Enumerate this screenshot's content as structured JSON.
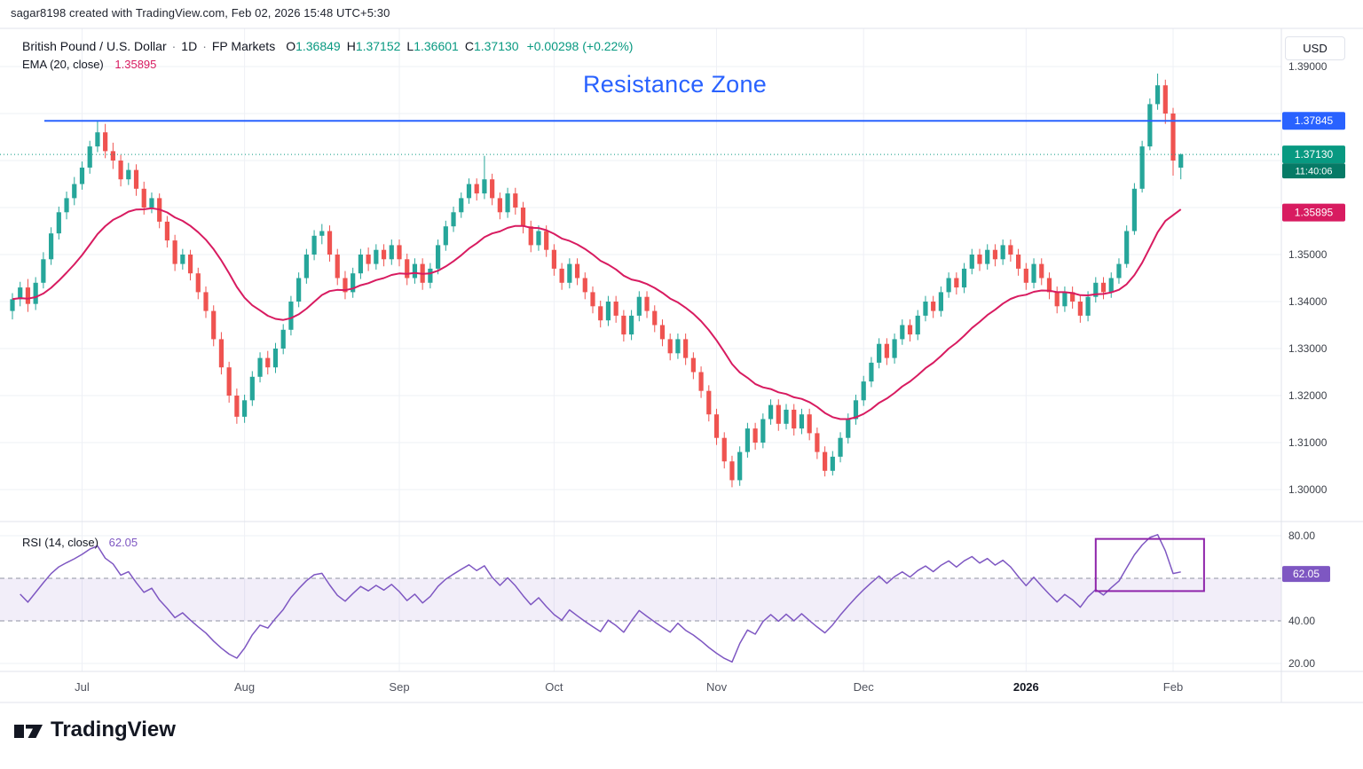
{
  "attribution": "sagar8198 created with TradingView.com, Feb 02, 2026 15:48 UTC+5:30",
  "header": {
    "symbol": "British Pound / U.S. Dollar",
    "sep": "·",
    "interval": "1D",
    "broker": "FP Markets",
    "ohlc": {
      "o_label": "O",
      "o": "1.36849",
      "h_label": "H",
      "h": "1.37152",
      "l_label": "L",
      "l": "1.36601",
      "c_label": "C",
      "c": "1.37130",
      "change": "+0.00298 (+0.22%)"
    },
    "indicator": {
      "name": "EMA (20, close)",
      "value": "1.35895"
    }
  },
  "annotations": {
    "resistance_text": "Resistance Zone"
  },
  "colors": {
    "up": "#26a69a",
    "down": "#ef5350",
    "up_text": "#089981",
    "ema": "#d81b60",
    "resistance": "#2962ff",
    "rsi": "#7e57c2",
    "countdown_bg": "#067a66",
    "grid": "#eef0f6",
    "frame": "#e0e3eb",
    "axis_text": "#3c4049",
    "time_text": "#50535e"
  },
  "price_axis": {
    "currency_button": "USD",
    "labels": [
      {
        "text": "1.39000",
        "value": 1.39
      },
      {
        "text": "1.35000",
        "value": 1.35
      },
      {
        "text": "1.34000",
        "value": 1.34
      },
      {
        "text": "1.33000",
        "value": 1.33
      },
      {
        "text": "1.32000",
        "value": 1.32
      },
      {
        "text": "1.31000",
        "value": 1.31
      },
      {
        "text": "1.30000",
        "value": 1.3
      }
    ],
    "resistance_label": {
      "text": "1.37845",
      "value": 1.37845
    },
    "last_price_label": {
      "text": "1.37130",
      "value": 1.3713,
      "countdown": "11:40:06"
    },
    "ema_label": {
      "text": "1.35895",
      "value": 1.35895
    }
  },
  "rsi_pane": {
    "name": "RSI (14, close)",
    "value": "62.05",
    "line_color": "#7e57c2",
    "band_fill": "rgba(126,87,194,0.10)",
    "band_upper": 60,
    "band_lower": 40,
    "axis_labels": [
      {
        "text": "80.00",
        "value": 80
      },
      {
        "text": "40.00",
        "value": 40
      },
      {
        "text": "20.00",
        "value": 20
      }
    ],
    "value_label": {
      "text": "62.05",
      "value": 62.05
    },
    "highlight_box": {
      "from_index": 140,
      "to_index": 154,
      "top_rsi": 78.5,
      "bottom_rsi": 54,
      "color": "#8e24aa"
    }
  },
  "time_axis": {
    "labels": [
      {
        "label": "Jul",
        "index": 9
      },
      {
        "label": "Aug",
        "index": 30
      },
      {
        "label": "Sep",
        "index": 50
      },
      {
        "label": "Oct",
        "index": 70
      },
      {
        "label": "Nov",
        "index": 91
      },
      {
        "label": "Dec",
        "index": 110
      },
      {
        "label": "2026",
        "index": 131,
        "bold": true
      },
      {
        "label": "Feb",
        "index": 150
      }
    ]
  },
  "footer": {
    "brand": "TradingView"
  },
  "chart_data": {
    "type": "candlestick",
    "symbol": "GBP/USD",
    "interval": "1D",
    "title": "British Pound / U.S. Dollar 1D with EMA(20) and RSI(14)",
    "y_axis_range": [
      1.295,
      1.395
    ],
    "rsi_axis_range": [
      20,
      80
    ],
    "ema_period": 20,
    "rsi_period": 14,
    "resistance_level": 1.37845,
    "last_price": 1.3713,
    "last_values": {
      "ema": 1.35895,
      "rsi": 62.05
    },
    "candles": [
      [
        1.338,
        1.3418,
        1.3362,
        1.3405
      ],
      [
        1.3405,
        1.3442,
        1.339,
        1.343
      ],
      [
        1.343,
        1.3448,
        1.3378,
        1.3395
      ],
      [
        1.3395,
        1.3452,
        1.3382,
        1.344
      ],
      [
        1.344,
        1.3505,
        1.3428,
        1.349
      ],
      [
        1.349,
        1.3558,
        1.3478,
        1.3545
      ],
      [
        1.3545,
        1.3602,
        1.3532,
        1.359
      ],
      [
        1.359,
        1.3634,
        1.3575,
        1.362
      ],
      [
        1.362,
        1.3665,
        1.3605,
        1.365
      ],
      [
        1.365,
        1.3698,
        1.3638,
        1.3685
      ],
      [
        1.3685,
        1.3742,
        1.3672,
        1.373
      ],
      [
        1.373,
        1.3785,
        1.3718,
        1.376
      ],
      [
        1.376,
        1.3778,
        1.3705,
        1.372
      ],
      [
        1.372,
        1.3738,
        1.3682,
        1.37
      ],
      [
        1.37,
        1.3712,
        1.3645,
        1.366
      ],
      [
        1.366,
        1.3695,
        1.3648,
        1.368
      ],
      [
        1.368,
        1.3692,
        1.3625,
        1.364
      ],
      [
        1.364,
        1.3655,
        1.3585,
        1.36
      ],
      [
        1.36,
        1.3632,
        1.3588,
        1.362
      ],
      [
        1.362,
        1.363,
        1.3556,
        1.357
      ],
      [
        1.357,
        1.3582,
        1.3515,
        1.353
      ],
      [
        1.353,
        1.3542,
        1.3465,
        1.348
      ],
      [
        1.348,
        1.3512,
        1.3468,
        1.35
      ],
      [
        1.35,
        1.351,
        1.3445,
        1.346
      ],
      [
        1.346,
        1.3472,
        1.3405,
        1.342
      ],
      [
        1.342,
        1.3432,
        1.3365,
        1.338
      ],
      [
        1.338,
        1.3392,
        1.3305,
        1.332
      ],
      [
        1.332,
        1.3335,
        1.3245,
        1.326
      ],
      [
        1.326,
        1.3272,
        1.3185,
        1.32
      ],
      [
        1.32,
        1.3215,
        1.314,
        1.3155
      ],
      [
        1.3155,
        1.3202,
        1.3142,
        1.319
      ],
      [
        1.319,
        1.3252,
        1.3178,
        1.324
      ],
      [
        1.324,
        1.3292,
        1.3228,
        1.328
      ],
      [
        1.328,
        1.3295,
        1.3245,
        1.326
      ],
      [
        1.326,
        1.3312,
        1.3248,
        1.33
      ],
      [
        1.33,
        1.3352,
        1.3288,
        1.334
      ],
      [
        1.334,
        1.3412,
        1.3328,
        1.34
      ],
      [
        1.34,
        1.3462,
        1.3388,
        1.345
      ],
      [
        1.345,
        1.3512,
        1.3438,
        1.35
      ],
      [
        1.35,
        1.3552,
        1.3488,
        1.354
      ],
      [
        1.354,
        1.3565,
        1.3522,
        1.355
      ],
      [
        1.355,
        1.3562,
        1.3485,
        1.35
      ],
      [
        1.35,
        1.3512,
        1.3435,
        1.345
      ],
      [
        1.345,
        1.3465,
        1.3405,
        1.342
      ],
      [
        1.342,
        1.3472,
        1.3408,
        1.346
      ],
      [
        1.346,
        1.3512,
        1.3448,
        1.35
      ],
      [
        1.35,
        1.3515,
        1.3465,
        1.348
      ],
      [
        1.348,
        1.3522,
        1.3468,
        1.351
      ],
      [
        1.351,
        1.3522,
        1.3475,
        1.349
      ],
      [
        1.349,
        1.3532,
        1.3478,
        1.352
      ],
      [
        1.352,
        1.3532,
        1.3475,
        1.349
      ],
      [
        1.349,
        1.3502,
        1.3435,
        1.345
      ],
      [
        1.345,
        1.3492,
        1.3438,
        1.348
      ],
      [
        1.348,
        1.3492,
        1.3425,
        1.344
      ],
      [
        1.344,
        1.3482,
        1.3428,
        1.347
      ],
      [
        1.347,
        1.3532,
        1.3458,
        1.352
      ],
      [
        1.352,
        1.3572,
        1.3508,
        1.356
      ],
      [
        1.356,
        1.3602,
        1.3548,
        1.359
      ],
      [
        1.359,
        1.3632,
        1.3578,
        1.362
      ],
      [
        1.362,
        1.3662,
        1.3608,
        1.365
      ],
      [
        1.365,
        1.3662,
        1.3615,
        1.363
      ],
      [
        1.363,
        1.371,
        1.3618,
        1.366
      ],
      [
        1.366,
        1.3672,
        1.3605,
        1.362
      ],
      [
        1.362,
        1.3632,
        1.3575,
        1.359
      ],
      [
        1.359,
        1.3642,
        1.3578,
        1.363
      ],
      [
        1.363,
        1.3642,
        1.3585,
        1.36
      ],
      [
        1.36,
        1.3612,
        1.3545,
        1.356
      ],
      [
        1.356,
        1.3572,
        1.3505,
        1.352
      ],
      [
        1.352,
        1.3562,
        1.3508,
        1.355
      ],
      [
        1.355,
        1.3562,
        1.3495,
        1.351
      ],
      [
        1.351,
        1.3522,
        1.3455,
        1.347
      ],
      [
        1.347,
        1.3482,
        1.3425,
        1.344
      ],
      [
        1.344,
        1.3492,
        1.3428,
        1.348
      ],
      [
        1.348,
        1.3492,
        1.3435,
        1.345
      ],
      [
        1.345,
        1.3462,
        1.3405,
        1.342
      ],
      [
        1.342,
        1.3432,
        1.3375,
        1.339
      ],
      [
        1.339,
        1.3402,
        1.3345,
        1.336
      ],
      [
        1.336,
        1.3412,
        1.3348,
        1.34
      ],
      [
        1.34,
        1.3412,
        1.3355,
        1.337
      ],
      [
        1.337,
        1.3382,
        1.3315,
        1.333
      ],
      [
        1.333,
        1.3382,
        1.3318,
        1.337
      ],
      [
        1.337,
        1.3422,
        1.3358,
        1.341
      ],
      [
        1.341,
        1.3422,
        1.3365,
        1.338
      ],
      [
        1.338,
        1.3392,
        1.3335,
        1.335
      ],
      [
        1.335,
        1.3362,
        1.3305,
        1.332
      ],
      [
        1.332,
        1.3332,
        1.3275,
        1.329
      ],
      [
        1.329,
        1.3332,
        1.3278,
        1.332
      ],
      [
        1.332,
        1.3332,
        1.3265,
        1.328
      ],
      [
        1.328,
        1.3292,
        1.3235,
        1.325
      ],
      [
        1.325,
        1.3262,
        1.3195,
        1.321
      ],
      [
        1.321,
        1.3222,
        1.3145,
        1.316
      ],
      [
        1.316,
        1.3172,
        1.3095,
        1.311
      ],
      [
        1.311,
        1.3122,
        1.3045,
        1.306
      ],
      [
        1.306,
        1.3072,
        1.3005,
        1.302
      ],
      [
        1.302,
        1.3092,
        1.3008,
        1.308
      ],
      [
        1.308,
        1.3142,
        1.3068,
        1.313
      ],
      [
        1.313,
        1.3142,
        1.3085,
        1.31
      ],
      [
        1.31,
        1.3162,
        1.3088,
        1.315
      ],
      [
        1.315,
        1.3192,
        1.3138,
        1.318
      ],
      [
        1.318,
        1.3192,
        1.3125,
        1.314
      ],
      [
        1.314,
        1.3182,
        1.3128,
        1.317
      ],
      [
        1.317,
        1.3182,
        1.3115,
        1.313
      ],
      [
        1.313,
        1.3172,
        1.3118,
        1.316
      ],
      [
        1.316,
        1.3172,
        1.3105,
        1.312
      ],
      [
        1.312,
        1.3132,
        1.3065,
        1.308
      ],
      [
        1.308,
        1.3092,
        1.3028,
        1.304
      ],
      [
        1.304,
        1.3082,
        1.303,
        1.307
      ],
      [
        1.307,
        1.3122,
        1.3058,
        1.311
      ],
      [
        1.311,
        1.3162,
        1.3098,
        1.315
      ],
      [
        1.315,
        1.3202,
        1.3138,
        1.319
      ],
      [
        1.319,
        1.3242,
        1.3178,
        1.323
      ],
      [
        1.323,
        1.3282,
        1.3218,
        1.327
      ],
      [
        1.327,
        1.3322,
        1.3258,
        1.331
      ],
      [
        1.331,
        1.3322,
        1.3265,
        1.328
      ],
      [
        1.328,
        1.3332,
        1.3268,
        1.332
      ],
      [
        1.332,
        1.3362,
        1.3308,
        1.335
      ],
      [
        1.335,
        1.3362,
        1.3315,
        1.333
      ],
      [
        1.333,
        1.3382,
        1.3318,
        1.337
      ],
      [
        1.337,
        1.3412,
        1.3358,
        1.34
      ],
      [
        1.34,
        1.3412,
        1.3365,
        1.338
      ],
      [
        1.338,
        1.3432,
        1.3368,
        1.342
      ],
      [
        1.342,
        1.3462,
        1.3408,
        1.345
      ],
      [
        1.345,
        1.3462,
        1.3415,
        1.343
      ],
      [
        1.343,
        1.3482,
        1.3418,
        1.347
      ],
      [
        1.347,
        1.3512,
        1.3458,
        1.35
      ],
      [
        1.35,
        1.3512,
        1.3465,
        1.348
      ],
      [
        1.348,
        1.3522,
        1.3468,
        1.351
      ],
      [
        1.351,
        1.3522,
        1.3475,
        1.349
      ],
      [
        1.349,
        1.3532,
        1.3478,
        1.352
      ],
      [
        1.352,
        1.3532,
        1.3485,
        1.35
      ],
      [
        1.35,
        1.3512,
        1.3455,
        1.347
      ],
      [
        1.347,
        1.3482,
        1.3425,
        1.344
      ],
      [
        1.344,
        1.3492,
        1.3428,
        1.348
      ],
      [
        1.348,
        1.3492,
        1.3435,
        1.345
      ],
      [
        1.345,
        1.3462,
        1.3405,
        1.342
      ],
      [
        1.342,
        1.3432,
        1.3375,
        1.339
      ],
      [
        1.339,
        1.3432,
        1.3378,
        1.342
      ],
      [
        1.342,
        1.3432,
        1.3385,
        1.34
      ],
      [
        1.34,
        1.3412,
        1.3355,
        1.337
      ],
      [
        1.337,
        1.3422,
        1.3358,
        1.341
      ],
      [
        1.341,
        1.3452,
        1.3398,
        1.344
      ],
      [
        1.344,
        1.3452,
        1.3405,
        1.342
      ],
      [
        1.342,
        1.3462,
        1.3408,
        1.345
      ],
      [
        1.345,
        1.3492,
        1.3438,
        1.348
      ],
      [
        1.348,
        1.3562,
        1.3472,
        1.355
      ],
      [
        1.355,
        1.3652,
        1.3542,
        1.364
      ],
      [
        1.364,
        1.3742,
        1.3632,
        1.373
      ],
      [
        1.373,
        1.3832,
        1.3722,
        1.382
      ],
      [
        1.382,
        1.3885,
        1.3808,
        1.386
      ],
      [
        1.386,
        1.3872,
        1.3778,
        1.38
      ],
      [
        1.38,
        1.3812,
        1.3668,
        1.37
      ],
      [
        1.36849,
        1.37152,
        1.36601,
        1.3713
      ]
    ]
  }
}
